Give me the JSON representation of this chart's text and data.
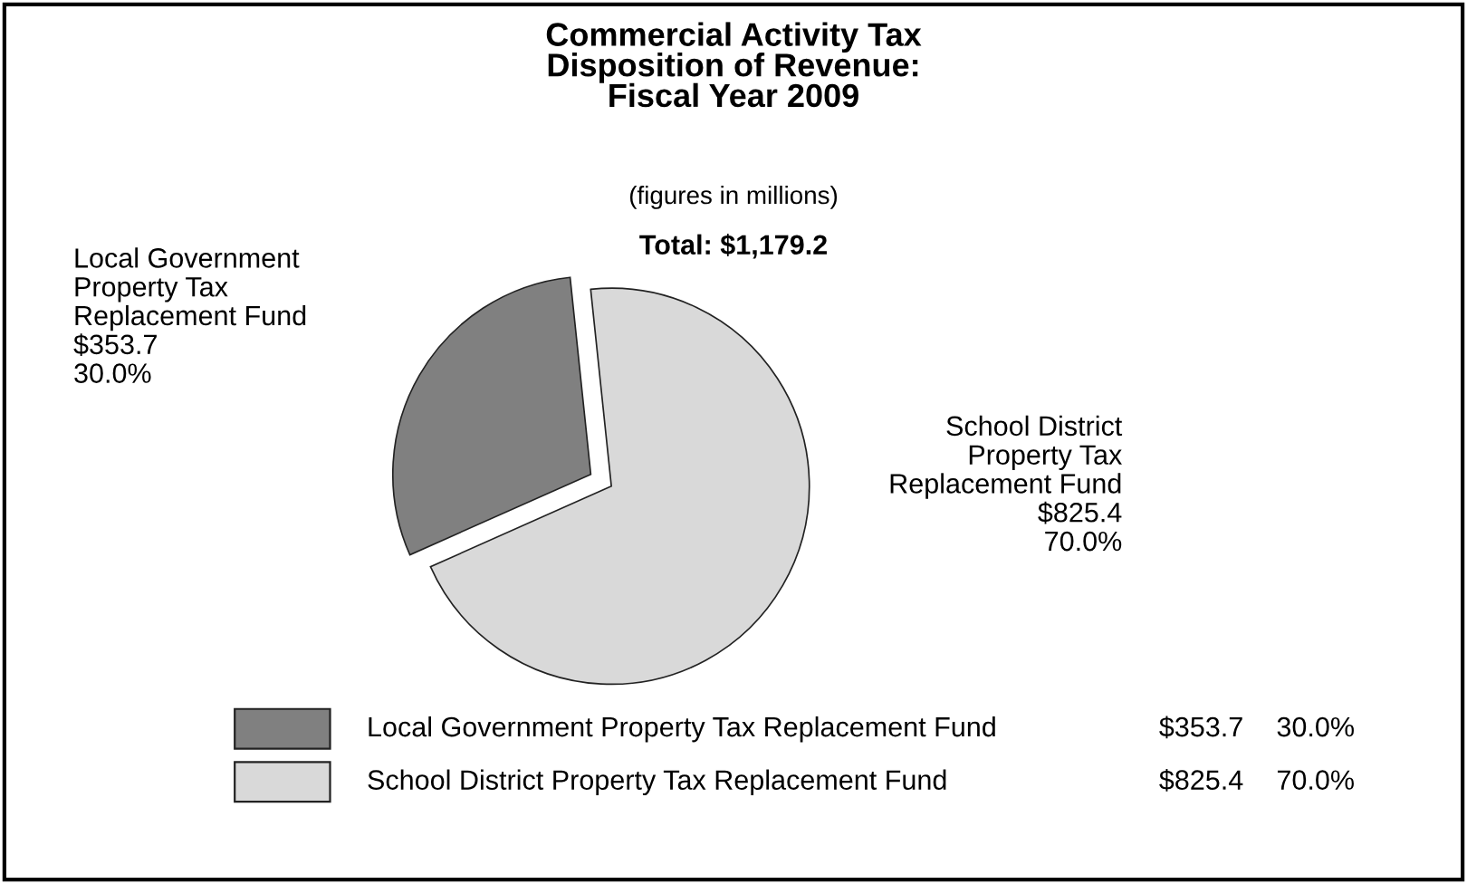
{
  "chart_data": {
    "type": "pie",
    "title": "Commercial Activity Tax\nDisposition of Revenue:\nFiscal Year 2009",
    "subtitle": "(figures in millions)",
    "annotations": [
      "Total: $1,179.2"
    ],
    "categories": [
      "Local Government Property Tax Replacement Fund",
      "School District Property Tax Replacement Fund"
    ],
    "values": [
      353.7,
      825.4
    ],
    "colors": [
      "#808080",
      "#d9d9d9"
    ],
    "value_labels": [
      "$353.7\n30.0%",
      "$825.4\n70.0%"
    ],
    "legend": "bottom"
  }
}
